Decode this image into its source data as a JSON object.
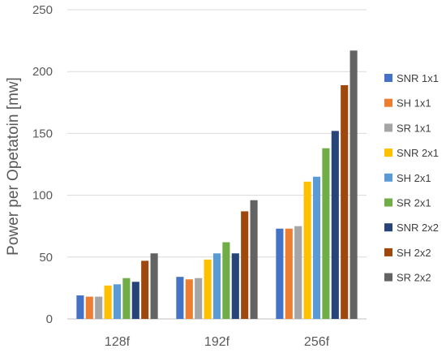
{
  "chart_data": {
    "type": "bar",
    "title": "",
    "xlabel": "",
    "ylabel": "Power per Opetatoin [mw]",
    "ylim": [
      0,
      250
    ],
    "yticks": [
      0,
      50,
      100,
      150,
      200,
      250
    ],
    "grid": true,
    "legend_position": "right",
    "categories": [
      "128f",
      "192f",
      "256f"
    ],
    "series": [
      {
        "name": "SNR 1x1",
        "color": "#4472C4",
        "values": [
          19,
          34,
          73
        ]
      },
      {
        "name": "SH 1x1",
        "color": "#ED7D31",
        "values": [
          18,
          32,
          73
        ]
      },
      {
        "name": "SR 1x1",
        "color": "#A5A5A5",
        "values": [
          18,
          33,
          75
        ]
      },
      {
        "name": "SNR 2x1",
        "color": "#FFC000",
        "values": [
          27,
          48,
          111
        ]
      },
      {
        "name": "SH 2x1",
        "color": "#5B9BD5",
        "values": [
          28,
          53,
          115
        ]
      },
      {
        "name": "SR 2x1",
        "color": "#70AD47",
        "values": [
          33,
          62,
          138
        ]
      },
      {
        "name": "SNR 2x2",
        "color": "#264478",
        "values": [
          30,
          53,
          152
        ]
      },
      {
        "name": "SH 2x2",
        "color": "#9E480E",
        "values": [
          47,
          87,
          189
        ]
      },
      {
        "name": "SR 2x2",
        "color": "#636363",
        "values": [
          53,
          96,
          217
        ]
      }
    ]
  }
}
